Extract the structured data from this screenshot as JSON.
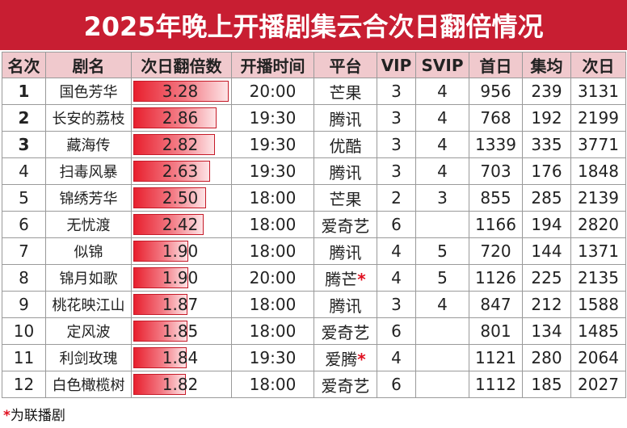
{
  "title": "2025年晚上开播剧集云合次日翻倍情况",
  "headers": [
    "名次",
    "剧名",
    "次日翻倍数",
    "开播时间",
    "平台",
    "VIP",
    "SVIP",
    "首日",
    "集均",
    "次日"
  ],
  "max_ratio": 3.28,
  "rows": [
    {
      "rank": "1",
      "name": "国色芳华",
      "ratio": "3.28",
      "time": "20:00",
      "platform": "芒果",
      "star": "",
      "vip": "3",
      "svip": "4",
      "first": "956",
      "avg": "239",
      "next": "3131",
      "top": true
    },
    {
      "rank": "2",
      "name": "长安的荔枝",
      "ratio": "2.86",
      "time": "19:30",
      "platform": "腾讯",
      "star": "",
      "vip": "3",
      "svip": "4",
      "first": "768",
      "avg": "192",
      "next": "2199",
      "top": true
    },
    {
      "rank": "3",
      "name": "藏海传",
      "ratio": "2.82",
      "time": "19:30",
      "platform": "优酷",
      "star": "",
      "vip": "3",
      "svip": "4",
      "first": "1339",
      "avg": "335",
      "next": "3771",
      "top": true
    },
    {
      "rank": "4",
      "name": "扫毒风暴",
      "ratio": "2.63",
      "time": "19:30",
      "platform": "腾讯",
      "star": "",
      "vip": "3",
      "svip": "4",
      "first": "703",
      "avg": "176",
      "next": "1848",
      "top": false
    },
    {
      "rank": "5",
      "name": "锦绣芳华",
      "ratio": "2.50",
      "time": "18:00",
      "platform": "芒果",
      "star": "",
      "vip": "2",
      "svip": "3",
      "first": "855",
      "avg": "285",
      "next": "2139",
      "top": false
    },
    {
      "rank": "6",
      "name": "无忧渡",
      "ratio": "2.42",
      "time": "18:00",
      "platform": "爱奇艺",
      "star": "",
      "vip": "6",
      "svip": "",
      "first": "1166",
      "avg": "194",
      "next": "2820",
      "top": false
    },
    {
      "rank": "7",
      "name": "似锦",
      "ratio": "1.90",
      "time": "18:00",
      "platform": "腾讯",
      "star": "",
      "vip": "4",
      "svip": "5",
      "first": "720",
      "avg": "144",
      "next": "1371",
      "top": false
    },
    {
      "rank": "8",
      "name": "锦月如歌",
      "ratio": "1.90",
      "time": "20:00",
      "platform": "腾芒",
      "star": "*",
      "vip": "4",
      "svip": "5",
      "first": "1126",
      "avg": "225",
      "next": "2135",
      "top": false
    },
    {
      "rank": "9",
      "name": "桃花映江山",
      "ratio": "1.87",
      "time": "18:00",
      "platform": "腾讯",
      "star": "",
      "vip": "3",
      "svip": "4",
      "first": "847",
      "avg": "212",
      "next": "1588",
      "top": false
    },
    {
      "rank": "10",
      "name": "定风波",
      "ratio": "1.85",
      "time": "18:00",
      "platform": "爱奇艺",
      "star": "",
      "vip": "6",
      "svip": "",
      "first": "801",
      "avg": "134",
      "next": "1485",
      "top": false
    },
    {
      "rank": "11",
      "name": "利剑玫瑰",
      "ratio": "1.84",
      "time": "19:30",
      "platform": "爱腾",
      "star": "*",
      "vip": "4",
      "svip": "",
      "first": "1121",
      "avg": "280",
      "next": "2064",
      "top": false
    },
    {
      "rank": "12",
      "name": "白色橄榄树",
      "ratio": "1.82",
      "time": "18:00",
      "platform": "爱奇艺",
      "star": "",
      "vip": "6",
      "svip": "",
      "first": "1112",
      "avg": "185",
      "next": "2027",
      "top": false
    }
  ],
  "footnote": {
    "star": "*",
    "text": "为联播剧"
  },
  "colors": {
    "header_bg": "#c81e32",
    "col_header_bg": "#f0c9cd",
    "bar": "#e8202e",
    "star": "#e01020"
  }
}
